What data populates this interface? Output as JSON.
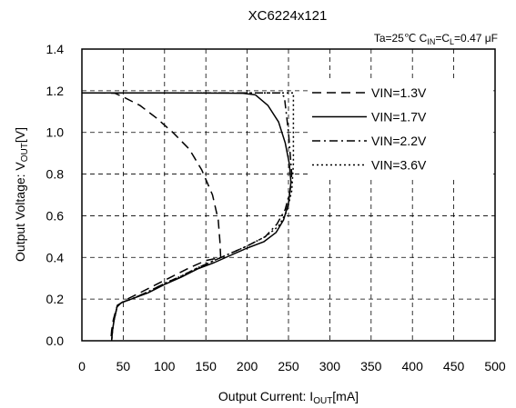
{
  "chart_data": {
    "type": "line",
    "title": "XC6224x121",
    "conditions": {
      "ta": "Ta=25℃",
      "cin_main": "C",
      "cin_sub": "IN",
      "cl_main": "=C",
      "cl_sub": "L",
      "value": "=0.47 μF"
    },
    "xlabel": {
      "main": "Output Current: I",
      "sub": "OUT",
      "tail": "[mA]"
    },
    "ylabel": {
      "main": "Output Voltage: V",
      "sub": "OUT",
      "tail": "[V]"
    },
    "xlim": [
      0,
      500
    ],
    "ylim": [
      0,
      1.4
    ],
    "x_ticks": [
      0,
      50,
      100,
      150,
      200,
      250,
      300,
      350,
      400,
      450,
      500
    ],
    "y_ticks": [
      "0.0",
      "0.2",
      "0.4",
      "0.6",
      "0.8",
      "1.0",
      "1.2",
      "1.4"
    ],
    "grid": true,
    "legend_position": "top-right",
    "series": [
      {
        "name": "VIN=1.3V",
        "dash": "10,6",
        "points": [
          [
            0,
            1.19
          ],
          [
            20,
            1.19
          ],
          [
            40,
            1.188
          ],
          [
            50,
            1.17
          ],
          [
            70,
            1.13
          ],
          [
            90,
            1.07
          ],
          [
            110,
            1.0
          ],
          [
            130,
            0.92
          ],
          [
            145,
            0.82
          ],
          [
            158,
            0.7
          ],
          [
            165,
            0.58
          ],
          [
            167,
            0.48
          ],
          [
            168,
            0.4
          ],
          [
            150,
            0.385
          ],
          [
            130,
            0.35
          ],
          [
            110,
            0.31
          ],
          [
            90,
            0.27
          ],
          [
            70,
            0.23
          ],
          [
            55,
            0.2
          ],
          [
            47,
            0.18
          ],
          [
            42,
            0.16
          ],
          [
            38,
            0.1
          ],
          [
            36,
            0.05
          ],
          [
            35,
            0.0
          ]
        ]
      },
      {
        "name": "VIN=1.7V",
        "dash": "",
        "points": [
          [
            0,
            1.19
          ],
          [
            100,
            1.19
          ],
          [
            195,
            1.188
          ],
          [
            210,
            1.18
          ],
          [
            225,
            1.13
          ],
          [
            238,
            1.05
          ],
          [
            246,
            0.95
          ],
          [
            251,
            0.85
          ],
          [
            253,
            0.76
          ],
          [
            250,
            0.66
          ],
          [
            244,
            0.58
          ],
          [
            235,
            0.52
          ],
          [
            220,
            0.475
          ],
          [
            200,
            0.445
          ],
          [
            180,
            0.41
          ],
          [
            160,
            0.375
          ],
          [
            140,
            0.345
          ],
          [
            120,
            0.305
          ],
          [
            100,
            0.27
          ],
          [
            80,
            0.23
          ],
          [
            60,
            0.2
          ],
          [
            49,
            0.185
          ],
          [
            43,
            0.17
          ],
          [
            39,
            0.1
          ],
          [
            37,
            0.05
          ],
          [
            36,
            0.0
          ]
        ]
      },
      {
        "name": "VIN=2.2V",
        "dash": "9,4,2,4",
        "points": [
          [
            0,
            1.19
          ],
          [
            100,
            1.19
          ],
          [
            200,
            1.19
          ],
          [
            240,
            1.19
          ],
          [
            245,
            1.17
          ],
          [
            250,
            1.0
          ],
          [
            252,
            0.9
          ],
          [
            254,
            0.8
          ],
          [
            252,
            0.72
          ],
          [
            246,
            0.63
          ],
          [
            236,
            0.56
          ],
          [
            222,
            0.5
          ],
          [
            200,
            0.455
          ],
          [
            180,
            0.42
          ],
          [
            160,
            0.385
          ],
          [
            140,
            0.35
          ],
          [
            120,
            0.31
          ],
          [
            100,
            0.275
          ],
          [
            80,
            0.235
          ],
          [
            60,
            0.2
          ],
          [
            49,
            0.185
          ],
          [
            43,
            0.17
          ],
          [
            39,
            0.1
          ],
          [
            37,
            0.05
          ],
          [
            36,
            0.0
          ]
        ]
      },
      {
        "name": "VIN=3.6V",
        "dash": "2,3",
        "points": [
          [
            0,
            1.19
          ],
          [
            100,
            1.19
          ],
          [
            200,
            1.19
          ],
          [
            250,
            1.19
          ],
          [
            256,
            1.19
          ],
          [
            256,
            1.0
          ],
          [
            256,
            0.85
          ],
          [
            254,
            0.72
          ],
          [
            248,
            0.62
          ],
          [
            238,
            0.55
          ],
          [
            222,
            0.5
          ],
          [
            200,
            0.455
          ],
          [
            180,
            0.42
          ],
          [
            160,
            0.385
          ],
          [
            140,
            0.35
          ],
          [
            120,
            0.31
          ],
          [
            100,
            0.275
          ],
          [
            80,
            0.235
          ],
          [
            60,
            0.2
          ],
          [
            49,
            0.185
          ],
          [
            43,
            0.17
          ],
          [
            39,
            0.1
          ],
          [
            37,
            0.05
          ],
          [
            36,
            0.0
          ]
        ]
      }
    ]
  }
}
